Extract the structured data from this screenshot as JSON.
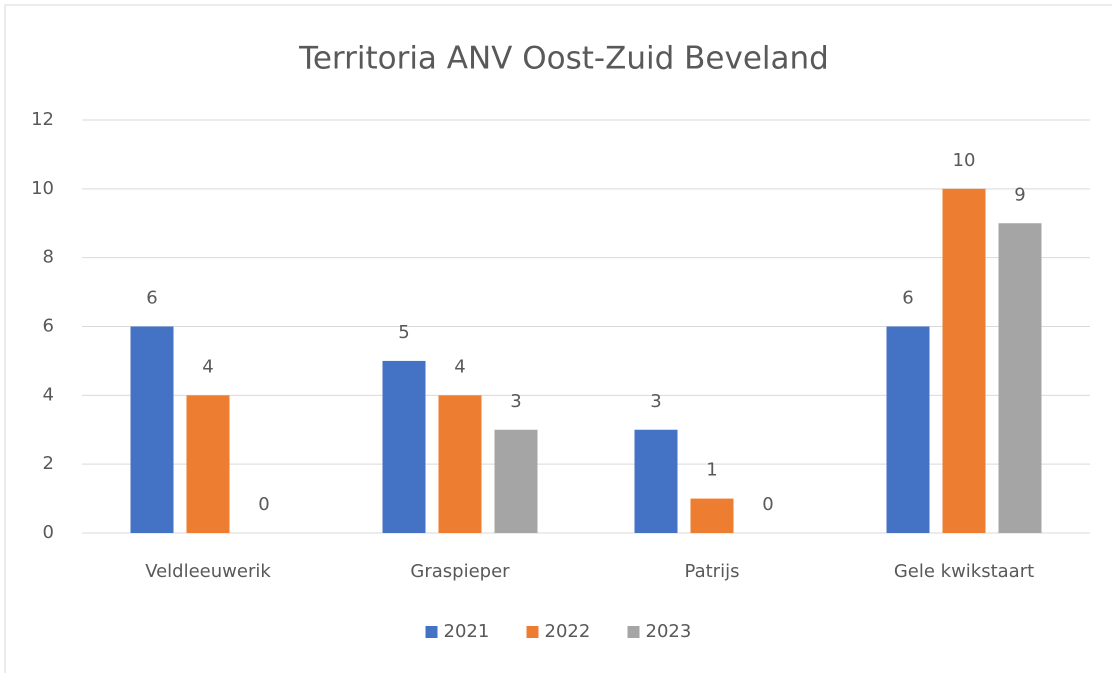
{
  "chart_data": {
    "type": "bar",
    "title": "Territoria ANV Oost-Zuid Beveland",
    "categories": [
      "Veldleeuwerik",
      "Graspieper",
      "Patrijs",
      "Gele kwikstaart"
    ],
    "series": [
      {
        "name": "2021",
        "color": "#4472c4",
        "values": [
          6,
          5,
          3,
          6
        ]
      },
      {
        "name": "2022",
        "color": "#ed7d31",
        "values": [
          4,
          4,
          1,
          10
        ]
      },
      {
        "name": "2023",
        "color": "#a5a5a5",
        "values": [
          0,
          3,
          0,
          9
        ]
      }
    ],
    "ylim": [
      0,
      12
    ],
    "yticks": [
      0,
      2,
      4,
      6,
      8,
      10,
      12
    ],
    "grid": true,
    "legend": "bottom"
  }
}
